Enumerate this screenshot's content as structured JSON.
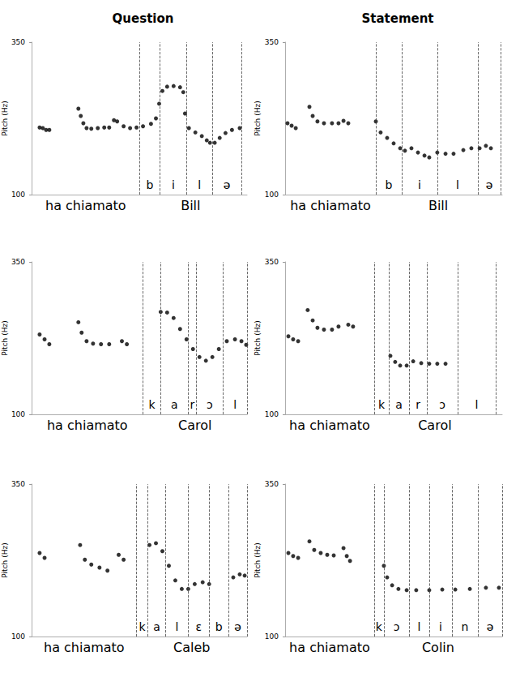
{
  "chart_data": [
    {
      "type": "scatter",
      "title": "Question",
      "ylabel": "Pitch (Hz)",
      "xlim": [
        0,
        100
      ],
      "ylim": [
        100,
        350
      ],
      "yticks": [
        100,
        350
      ],
      "tick_labels": "y",
      "grid": false,
      "color": "#000000",
      "marker": "circle",
      "x": [
        3.7,
        5.2,
        6.7,
        8.2,
        21.7,
        22.8,
        24.0,
        25.5,
        27.7,
        30.7,
        33.7,
        36.0,
        38.2,
        39.7,
        42.7,
        45.7,
        48.7,
        51.7,
        55.4,
        57.7,
        59.2,
        60.7,
        62.9,
        65.9,
        68.9,
        70.4,
        71.2,
        73.0,
        76.0,
        79.0,
        81.3,
        82.8,
        85.0,
        87.3,
        90.0,
        93.0,
        96.6
      ],
      "values": [
        210,
        209,
        206,
        206,
        241,
        229,
        217,
        209,
        208,
        209,
        210,
        210,
        222,
        220,
        212,
        209,
        210,
        212,
        216,
        225,
        249,
        270,
        277,
        278,
        276,
        268,
        233,
        209,
        202,
        196,
        189,
        185,
        185,
        193,
        201,
        206,
        209
      ],
      "boundaries": [
        50.2,
        59.6,
        71.9,
        83.9,
        97.4
      ],
      "phones": [
        "b",
        "i",
        "l",
        "ə"
      ],
      "words": [
        "ha chiamato",
        "Bill"
      ]
    },
    {
      "type": "scatter",
      "title": "Statement",
      "ylabel": "Pitch (Hz)",
      "xlim": [
        0,
        100
      ],
      "ylim": [
        100,
        350
      ],
      "yticks": [
        100,
        350
      ],
      "tick_labels": "y",
      "grid": false,
      "color": "#000000",
      "marker": "circle",
      "x": [
        1.1,
        3.0,
        4.9,
        11.2,
        12.7,
        14.9,
        17.9,
        21.6,
        24.6,
        26.9,
        29.1,
        41.8,
        44.0,
        47.0,
        50.0,
        53.0,
        55.2,
        58.2,
        61.2,
        64.2,
        66.4,
        70.1,
        73.9,
        77.6,
        82.1,
        85.8,
        89.6,
        92.5,
        94.8
      ],
      "values": [
        217,
        213,
        209,
        244,
        229,
        220,
        217,
        217,
        217,
        221,
        217,
        220,
        202,
        193,
        184,
        176,
        172,
        176,
        169,
        164,
        161,
        169,
        167,
        167,
        173,
        176,
        176,
        180,
        176
      ],
      "boundaries": [
        41.8,
        53.7,
        70.1,
        88.8,
        99.3
      ],
      "phones": [
        "b",
        "i",
        "l",
        "ə"
      ],
      "words": [
        "ha chiamato",
        "Bill"
      ]
    },
    {
      "type": "scatter",
      "ylabel": "Pitch (Hz)",
      "xlim": [
        0,
        100
      ],
      "ylim": [
        100,
        350
      ],
      "yticks": [
        100,
        350
      ],
      "tick_labels": "y",
      "grid": false,
      "color": "#000000",
      "marker": "circle",
      "x": [
        3.7,
        6.0,
        8.2,
        21.7,
        23.2,
        25.5,
        28.5,
        32.2,
        36.0,
        41.9,
        44.2,
        59.9,
        62.9,
        65.9,
        68.9,
        71.9,
        74.9,
        77.9,
        80.9,
        83.9,
        86.9,
        90.6,
        94.4,
        97.4,
        99.6
      ],
      "values": [
        231,
        223,
        215,
        251,
        234,
        220,
        216,
        215,
        215,
        220,
        215,
        268,
        267,
        258,
        240,
        223,
        207,
        194,
        188,
        194,
        207,
        220,
        223,
        220,
        214
      ],
      "boundaries": [
        51.7,
        59.9,
        72.7,
        76.4,
        88.8,
        100
      ],
      "phones": [
        "k",
        "a",
        "r",
        "ɔ",
        "l"
      ],
      "words": [
        "ha chiamato",
        "Carol"
      ]
    },
    {
      "type": "scatter",
      "ylabel": "Pitch (Hz)",
      "xlim": [
        0,
        100
      ],
      "ylim": [
        100,
        350
      ],
      "yticks": [
        100,
        350
      ],
      "tick_labels": "y",
      "grid": false,
      "color": "#000000",
      "marker": "circle",
      "x": [
        1.5,
        3.7,
        6.0,
        10.4,
        12.7,
        14.9,
        17.9,
        21.6,
        24.6,
        29.1,
        31.3,
        48.5,
        50.7,
        53.0,
        56.0,
        59.0,
        62.7,
        66.4,
        70.1,
        73.9
      ],
      "values": [
        228,
        223,
        220,
        271,
        254,
        242,
        239,
        239,
        244,
        247,
        244,
        196,
        186,
        180,
        180,
        187,
        184,
        183,
        183,
        183
      ],
      "boundaries": [
        41.0,
        47.8,
        57.1,
        65.3,
        79.5,
        97.0
      ],
      "phones": [
        "k",
        "a",
        "r",
        "ɔ",
        "l"
      ],
      "words": [
        "ha chiamato",
        "Carol"
      ]
    },
    {
      "type": "scatter",
      "ylabel": "Pitch (Hz)",
      "xlim": [
        0,
        100
      ],
      "ylim": [
        100,
        350
      ],
      "yticks": [
        100,
        350
      ],
      "tick_labels": "y",
      "grid": false,
      "color": "#000000",
      "marker": "circle",
      "x": [
        3.7,
        6.0,
        22.5,
        24.7,
        27.7,
        31.5,
        35.2,
        40.4,
        42.7,
        54.7,
        57.7,
        60.7,
        63.7,
        66.7,
        69.7,
        72.7,
        75.7,
        79.4,
        82.4,
        93.6,
        96.6,
        98.9
      ],
      "values": [
        237,
        229,
        250,
        226,
        218,
        213,
        208,
        234,
        226,
        250,
        253,
        240,
        216,
        192,
        178,
        178,
        186,
        189,
        186,
        197,
        202,
        200
      ],
      "boundaries": [
        48.7,
        53.9,
        62.2,
        72.7,
        82.4,
        91.4,
        100
      ],
      "phones": [
        "k",
        "a",
        "l",
        "ɛ",
        "b",
        "ə"
      ],
      "words": [
        "ha chiamato",
        "Caleb"
      ]
    },
    {
      "type": "scatter",
      "ylabel": "Pitch (Hz)",
      "xlim": [
        0,
        100
      ],
      "ylim": [
        100,
        350
      ],
      "yticks": [
        100,
        350
      ],
      "tick_labels": "y",
      "grid": false,
      "color": "#000000",
      "marker": "circle",
      "x": [
        1.5,
        3.7,
        6.0,
        11.2,
        13.4,
        16.4,
        19.4,
        22.4,
        26.9,
        28.4,
        29.9,
        45.5,
        47.0,
        49.3,
        52.2,
        56.0,
        60.4,
        66.4,
        72.4,
        78.4,
        85.1,
        92.5,
        98.5
      ],
      "values": [
        237,
        232,
        229,
        256,
        242,
        237,
        234,
        233,
        245,
        232,
        224,
        216,
        197,
        184,
        178,
        176,
        176,
        176,
        177,
        177,
        178,
        180,
        180
      ],
      "boundaries": [
        41.0,
        45.5,
        57.1,
        66.4,
        76.9,
        88.8,
        100
      ],
      "phones": [
        "k",
        "ɔ",
        "l",
        "i",
        "n",
        "ə"
      ],
      "words": [
        "ha chiamato",
        "Colin"
      ]
    }
  ]
}
